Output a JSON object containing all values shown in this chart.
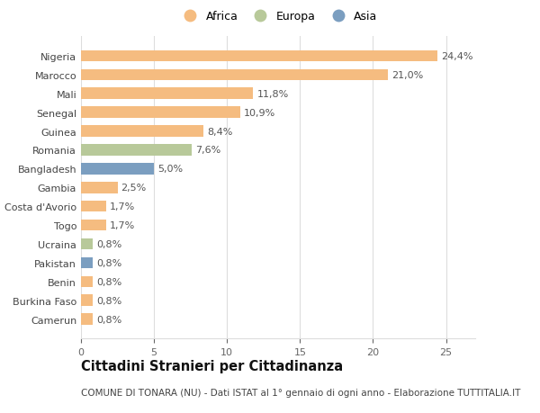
{
  "categories": [
    "Nigeria",
    "Marocco",
    "Mali",
    "Senegal",
    "Guinea",
    "Romania",
    "Bangladesh",
    "Gambia",
    "Costa d'Avorio",
    "Togo",
    "Ucraina",
    "Pakistan",
    "Benin",
    "Burkina Faso",
    "Camerun"
  ],
  "values": [
    24.4,
    21.0,
    11.8,
    10.9,
    8.4,
    7.6,
    5.0,
    2.5,
    1.7,
    1.7,
    0.8,
    0.8,
    0.8,
    0.8,
    0.8
  ],
  "labels": [
    "24,4%",
    "21,0%",
    "11,8%",
    "10,9%",
    "8,4%",
    "7,6%",
    "5,0%",
    "2,5%",
    "1,7%",
    "1,7%",
    "0,8%",
    "0,8%",
    "0,8%",
    "0,8%",
    "0,8%"
  ],
  "continents": [
    "Africa",
    "Africa",
    "Africa",
    "Africa",
    "Africa",
    "Europa",
    "Asia",
    "Africa",
    "Africa",
    "Africa",
    "Europa",
    "Asia",
    "Africa",
    "Africa",
    "Africa"
  ],
  "colors": {
    "Africa": "#F5BC80",
    "Europa": "#B8C99A",
    "Asia": "#7B9EC0"
  },
  "legend_labels": [
    "Africa",
    "Europa",
    "Asia"
  ],
  "legend_colors": [
    "#F5BC80",
    "#B8C99A",
    "#7B9EC0"
  ],
  "title": "Cittadini Stranieri per Cittadinanza",
  "subtitle": "COMUNE DI TONARA (NU) - Dati ISTAT al 1° gennaio di ogni anno - Elaborazione TUTTITALIA.IT",
  "xlim": [
    0,
    27
  ],
  "background_color": "#ffffff",
  "grid_color": "#dddddd",
  "label_fontsize": 8,
  "tick_fontsize": 8,
  "title_fontsize": 10.5,
  "subtitle_fontsize": 7.5
}
